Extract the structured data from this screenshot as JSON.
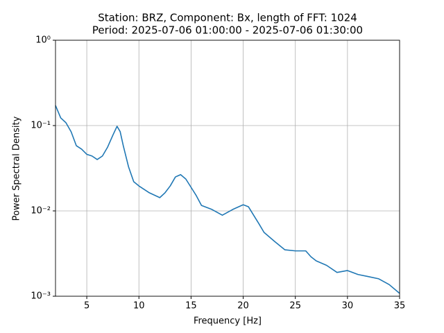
{
  "chart_data": {
    "type": "line",
    "title": "Station: BRZ, Component: Bx, length of FFT: 1024",
    "subtitle": "Period: 2025-07-06 01:00:00 - 2025-07-06 01:30:00",
    "x_label": "Frequency [Hz]",
    "y_label": "Power Spectral Density",
    "x": [
      2,
      2.5,
      3,
      3.5,
      4,
      4.5,
      5,
      5.5,
      6,
      6.5,
      7,
      7.5,
      7.9,
      8.2,
      8.5,
      9,
      9.5,
      10,
      11,
      12,
      12.5,
      13,
      13.5,
      14,
      14.5,
      15,
      15.5,
      16,
      17,
      18,
      19,
      20,
      20.5,
      21,
      21.5,
      22,
      23,
      24,
      25,
      26,
      26.5,
      27,
      28,
      29,
      30,
      31,
      32,
      33,
      34,
      35
    ],
    "series": [
      {
        "color": "#1f77b4",
        "values": [
          0.172,
          0.123,
          0.108,
          0.0845,
          0.058,
          0.053,
          0.046,
          0.044,
          0.04,
          0.044,
          0.056,
          0.077,
          0.098,
          0.085,
          0.058,
          0.033,
          0.022,
          0.0196,
          0.0163,
          0.0143,
          0.0163,
          0.0196,
          0.025,
          0.0266,
          0.0236,
          0.0189,
          0.0151,
          0.0116,
          0.0104,
          0.0089,
          0.0104,
          0.0118,
          0.0112,
          0.0089,
          0.0071,
          0.0056,
          0.0044,
          0.0035,
          0.0034,
          0.0034,
          0.0029,
          0.0026,
          0.0023,
          0.0019,
          0.002,
          0.0018,
          0.0017,
          0.0016,
          0.00137,
          0.00108
        ]
      }
    ],
    "xlim": [
      2,
      35
    ],
    "xticks": [
      5,
      10,
      15,
      20,
      25,
      30,
      35
    ],
    "ylim": [
      0.001,
      1
    ],
    "log_y": true,
    "yticks": [
      {
        "value": 0.001,
        "label": "10⁻³"
      },
      {
        "value": 0.01,
        "label": "10⁻²"
      },
      {
        "value": 0.1,
        "label": "10⁻¹"
      },
      {
        "value": 1,
        "label": "10⁰"
      }
    ],
    "grid": true
  }
}
